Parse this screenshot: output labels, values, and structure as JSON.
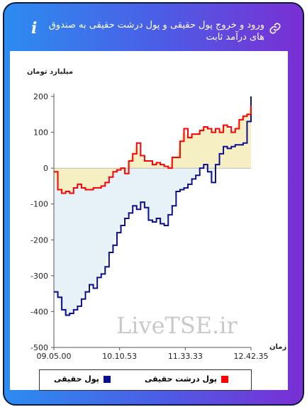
{
  "header": {
    "title": "ورود و خروج پول حقیقی و پول درشت حقیقی به صندوق های درآمد ثابت",
    "info_icon": "i"
  },
  "watermark": "LiveTSE.ir",
  "legend": {
    "item_real": "پول حقیقی",
    "item_big": "پول درشت حقیقی"
  },
  "colors": {
    "real_line": "#0a0f8f",
    "big_line": "#ff0000",
    "real_fill": "#e6f1f8",
    "big_fill": "#f7efc4",
    "frame": "#0c1b3a"
  },
  "chart_data": {
    "type": "line",
    "ylabel": "میلیارد تومان",
    "xlabel": "زمان",
    "ylim": [
      -500,
      200
    ],
    "yticks": [
      200,
      100,
      0,
      -100,
      -200,
      -300,
      -400,
      -500
    ],
    "xticks": [
      "09.05.00",
      "10.10.53",
      "11.33.33",
      "12.42.35"
    ],
    "series": [
      {
        "name": "پول حقیقی",
        "x": [
          0,
          2,
          4,
          6,
          8,
          10,
          12,
          14,
          16,
          18,
          20,
          22,
          24,
          26,
          28,
          30,
          32,
          34,
          36,
          38,
          40,
          42,
          44,
          46,
          48,
          50,
          52,
          54,
          56,
          58,
          60,
          62,
          64,
          66,
          68,
          70,
          72,
          74,
          76,
          78,
          80,
          82,
          84,
          86,
          88,
          90,
          92,
          94,
          96,
          98,
          100
        ],
        "values": [
          -345,
          -360,
          -395,
          -410,
          -405,
          -395,
          -385,
          -365,
          -345,
          -325,
          -335,
          -305,
          -295,
          -275,
          -235,
          -215,
          -180,
          -160,
          -140,
          -125,
          -105,
          -115,
          -95,
          -110,
          -145,
          -150,
          -140,
          -155,
          -160,
          -130,
          -105,
          -65,
          -60,
          -55,
          -45,
          -30,
          -20,
          0,
          10,
          -10,
          -40,
          10,
          40,
          60,
          55,
          60,
          65,
          65,
          70,
          130,
          200
        ]
      },
      {
        "name": "پول درشت حقیقی",
        "x": [
          0,
          2,
          4,
          6,
          8,
          10,
          12,
          14,
          16,
          18,
          20,
          22,
          24,
          26,
          28,
          30,
          32,
          34,
          36,
          38,
          40,
          42,
          44,
          46,
          48,
          50,
          52,
          54,
          56,
          58,
          60,
          62,
          64,
          66,
          68,
          70,
          72,
          74,
          76,
          78,
          80,
          82,
          84,
          86,
          88,
          90,
          92,
          94,
          96,
          98,
          100
        ],
        "values": [
          -10,
          -60,
          -70,
          -65,
          -70,
          -55,
          -45,
          -55,
          -60,
          -60,
          -55,
          -55,
          -50,
          -40,
          -25,
          -10,
          -5,
          0,
          -15,
          20,
          40,
          70,
          35,
          20,
          20,
          10,
          15,
          10,
          5,
          0,
          30,
          30,
          75,
          110,
          85,
          95,
          95,
          105,
          115,
          110,
          100,
          110,
          100,
          120,
          115,
          100,
          110,
          135,
          145,
          150,
          175
        ]
      }
    ]
  }
}
